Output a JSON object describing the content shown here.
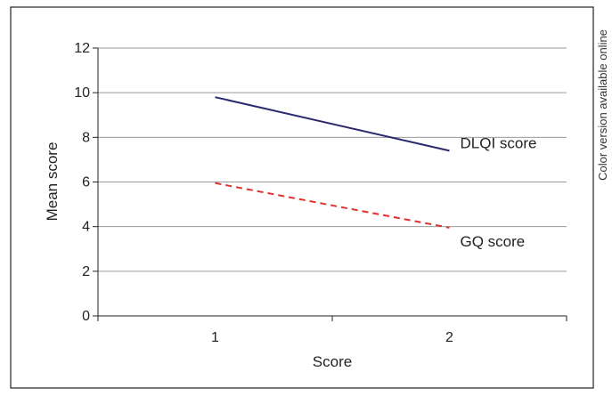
{
  "side_note": "Color version available online",
  "colors": {
    "dlqi": "#2b2a6e",
    "gq": "#e0322e",
    "grid": "#9a9a9a",
    "frame": "#222222"
  },
  "chart_data": {
    "type": "line",
    "title": "",
    "xlabel": "Score",
    "ylabel": "Mean score",
    "x": [
      1,
      2
    ],
    "xlim": [
      0.5,
      2.5
    ],
    "ylim": [
      0,
      12
    ],
    "yticks": [
      0,
      2,
      4,
      6,
      8,
      10,
      12
    ],
    "grid": true,
    "legend": "none",
    "series": [
      {
        "name": "DLQI score",
        "values": [
          9.8,
          7.4
        ],
        "line_style": "solid"
      },
      {
        "name": "GQ score",
        "values": [
          5.95,
          3.95
        ],
        "line_style": "dashed"
      }
    ]
  }
}
